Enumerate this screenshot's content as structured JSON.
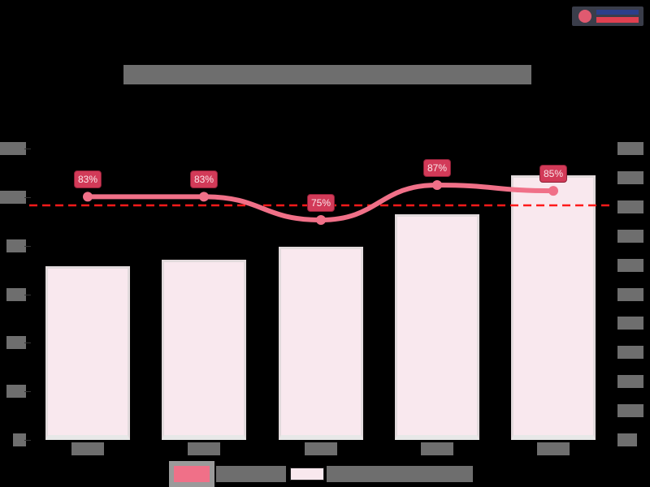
{
  "logo": {
    "label": ""
  },
  "chart_data": {
    "type": "bar+line",
    "title": "",
    "categories": [
      "",
      "",
      "",
      "",
      ""
    ],
    "xlabel": "",
    "ylabel_left": "",
    "ylabel_right": "",
    "left_axis_ticks": [
      "",
      "",
      "",
      "",
      "",
      "",
      ""
    ],
    "right_axis_ticks": [
      "",
      "",
      "",
      "",
      "",
      "",
      "",
      "",
      "",
      "",
      ""
    ],
    "series": [
      {
        "name": "",
        "type": "line",
        "axis": "left",
        "unit": "%",
        "values": [
          83,
          83,
          75,
          87,
          85
        ],
        "labels": [
          "83%",
          "83%",
          "75%",
          "87%",
          "85%"
        ],
        "color": "#f07088"
      },
      {
        "name": "",
        "type": "bar",
        "axis": "right",
        "relative_height": [
          0.596,
          0.618,
          0.663,
          0.774,
          0.908
        ],
        "color": "#f9e8ee"
      }
    ],
    "reference_line": {
      "style": "dashed",
      "color": "#ff1a1a",
      "axis": "left",
      "relative_position": 0.808
    },
    "grid": false,
    "legend_position": "bottom",
    "note": "Title, axis tick labels, category labels and legend text are illegible in source"
  },
  "legend": {
    "line_label": "",
    "bar_label": ""
  }
}
